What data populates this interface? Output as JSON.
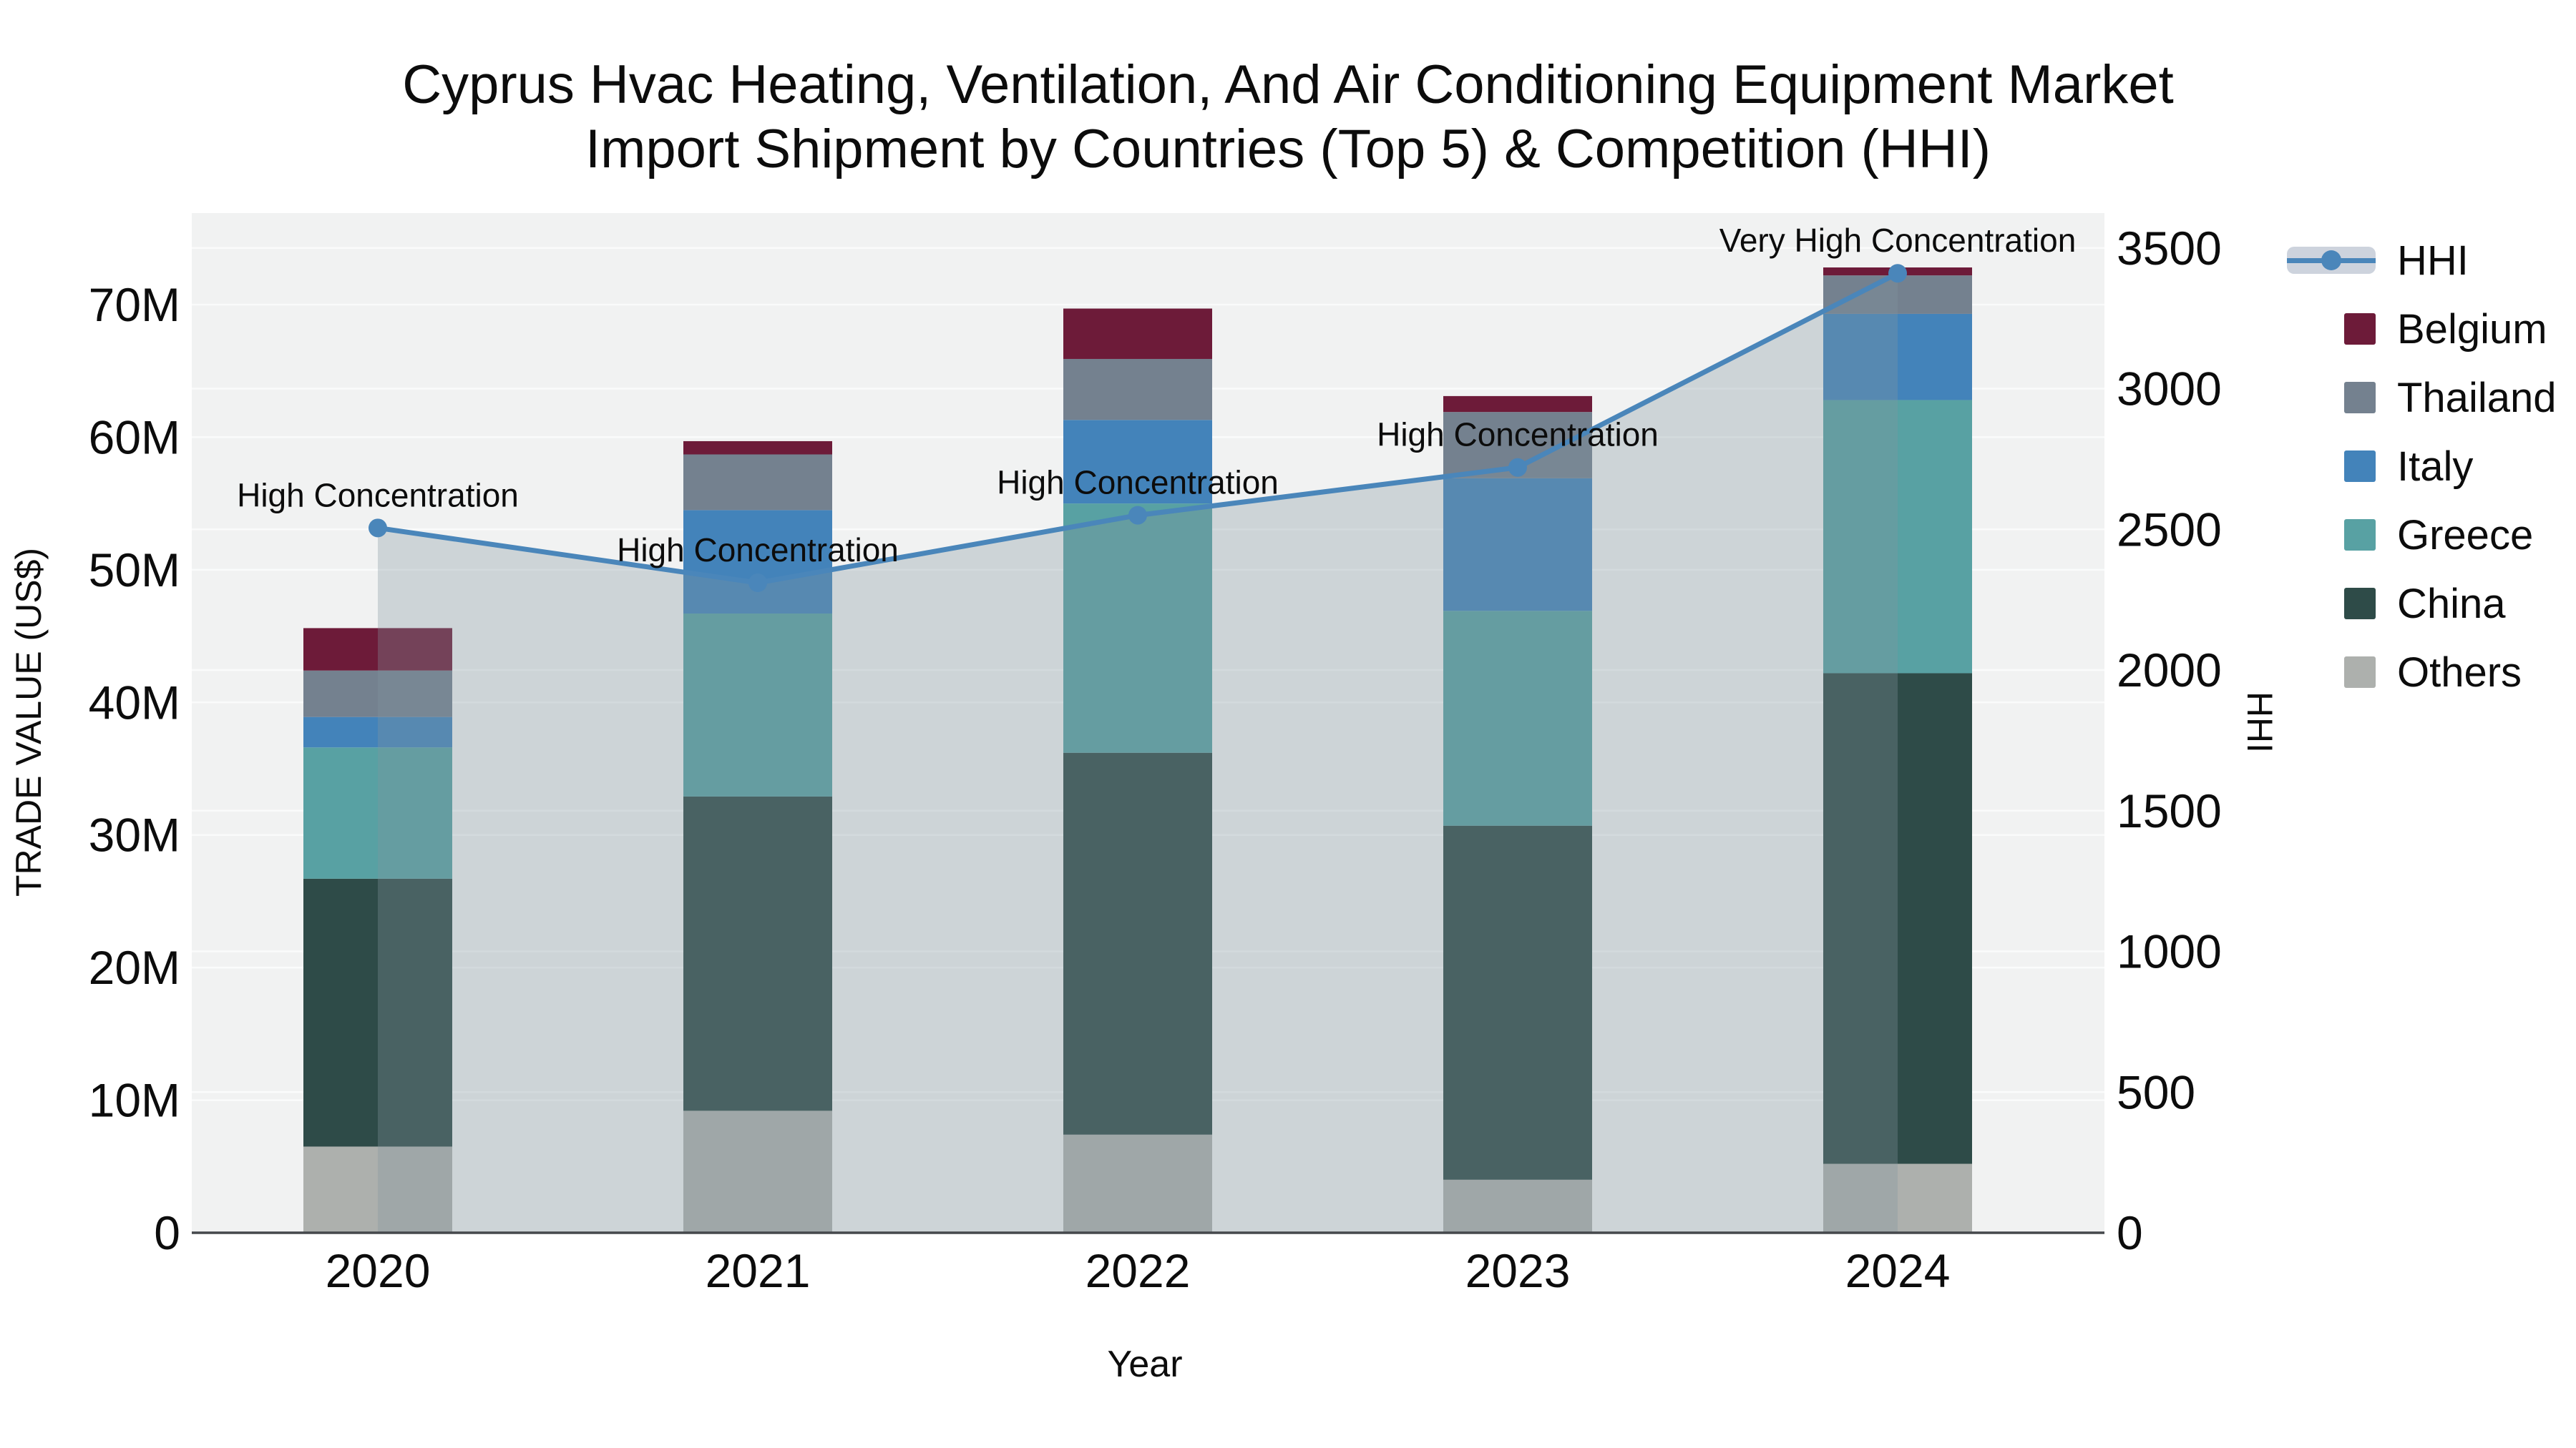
{
  "title": {
    "line1": "Cyprus Hvac Heating, Ventilation, And Air Conditioning Equipment Market",
    "line2": "Import Shipment by Countries (Top 5) & Competition (HHI)"
  },
  "chart_data": {
    "type": "bar+line",
    "title_line1": "Cyprus Hvac Heating, Ventilation, And Air Conditioning Equipment Market",
    "title_line2": "Import Shipment by Countries (Top 5) & Competition (HHI)",
    "xlabel": "Year",
    "ylabel_left": "TRADE VALUE (US$)",
    "ylabel_right": "HHI",
    "units_left": "US$ millions",
    "categories": [
      "2020",
      "2021",
      "2022",
      "2023",
      "2024"
    ],
    "stack_order": [
      "Others",
      "China",
      "Greece",
      "Italy",
      "Thailand",
      "Belgium"
    ],
    "series": [
      {
        "name": "Belgium",
        "color": "#6d1b39",
        "values": [
          3.2,
          1.0,
          3.8,
          1.2,
          0.6
        ]
      },
      {
        "name": "Thailand",
        "color": "#74818f",
        "values": [
          3.5,
          4.2,
          4.6,
          5.0,
          2.9
        ]
      },
      {
        "name": "Italy",
        "color": "#4383ba",
        "values": [
          2.3,
          7.8,
          6.3,
          10.0,
          6.5
        ]
      },
      {
        "name": "Greece",
        "color": "#58a1a3",
        "values": [
          9.9,
          13.8,
          18.8,
          16.2,
          20.6
        ]
      },
      {
        "name": "China",
        "color": "#2e4b48",
        "values": [
          20.2,
          23.7,
          28.8,
          26.7,
          37.0
        ]
      },
      {
        "name": "Others",
        "color": "#adb0ad",
        "values": [
          6.5,
          9.2,
          7.4,
          4.0,
          5.2
        ]
      }
    ],
    "bar_totals": [
      45.6,
      59.7,
      69.7,
      63.1,
      72.8
    ],
    "line_series": {
      "name": "HHI",
      "color": "#4a86ba",
      "fill": "rgba(130,148,160,0.32)",
      "values": [
        2505,
        2310,
        2550,
        2720,
        3410
      ]
    },
    "annotations": [
      "High Concentration",
      "High Concentration",
      "High Concentration",
      "High Concentration",
      "Very High Concentration"
    ],
    "y_left_ticks": [
      {
        "v": 0,
        "label": "0"
      },
      {
        "v": 10,
        "label": "10M"
      },
      {
        "v": 20,
        "label": "20M"
      },
      {
        "v": 30,
        "label": "30M"
      },
      {
        "v": 40,
        "label": "40M"
      },
      {
        "v": 50,
        "label": "50M"
      },
      {
        "v": 60,
        "label": "60M"
      },
      {
        "v": 70,
        "label": "70M"
      }
    ],
    "y_right_ticks": [
      {
        "v": 0,
        "label": "0"
      },
      {
        "v": 500,
        "label": "500"
      },
      {
        "v": 1000,
        "label": "1000"
      },
      {
        "v": 1500,
        "label": "1500"
      },
      {
        "v": 2000,
        "label": "2000"
      },
      {
        "v": 2500,
        "label": "2500"
      },
      {
        "v": 3000,
        "label": "3000"
      },
      {
        "v": 3500,
        "label": "3500"
      }
    ],
    "ylim_left": [
      0,
      76.9
    ],
    "ylim_right": [
      0,
      3624
    ],
    "grid": true,
    "legend_position": "right",
    "plot_bg": "#f1f2f2",
    "grid_color": "#fafbfb",
    "axis_line_color": "#45484c",
    "legend": [
      {
        "key": "hhi",
        "label": "HHI",
        "type": "line",
        "color": "#4a86ba",
        "band": "#cdd3dd"
      },
      {
        "key": "belgium",
        "label": "Belgium",
        "type": "square",
        "color": "#6d1b39"
      },
      {
        "key": "thailand",
        "label": "Thailand",
        "type": "square",
        "color": "#74818f"
      },
      {
        "key": "italy",
        "label": "Italy",
        "type": "square",
        "color": "#4383ba"
      },
      {
        "key": "greece",
        "label": "Greece",
        "type": "square",
        "color": "#58a1a3"
      },
      {
        "key": "china",
        "label": "China",
        "type": "square",
        "color": "#2e4b48"
      },
      {
        "key": "others",
        "label": "Others",
        "type": "square",
        "color": "#adb0ad"
      }
    ]
  }
}
